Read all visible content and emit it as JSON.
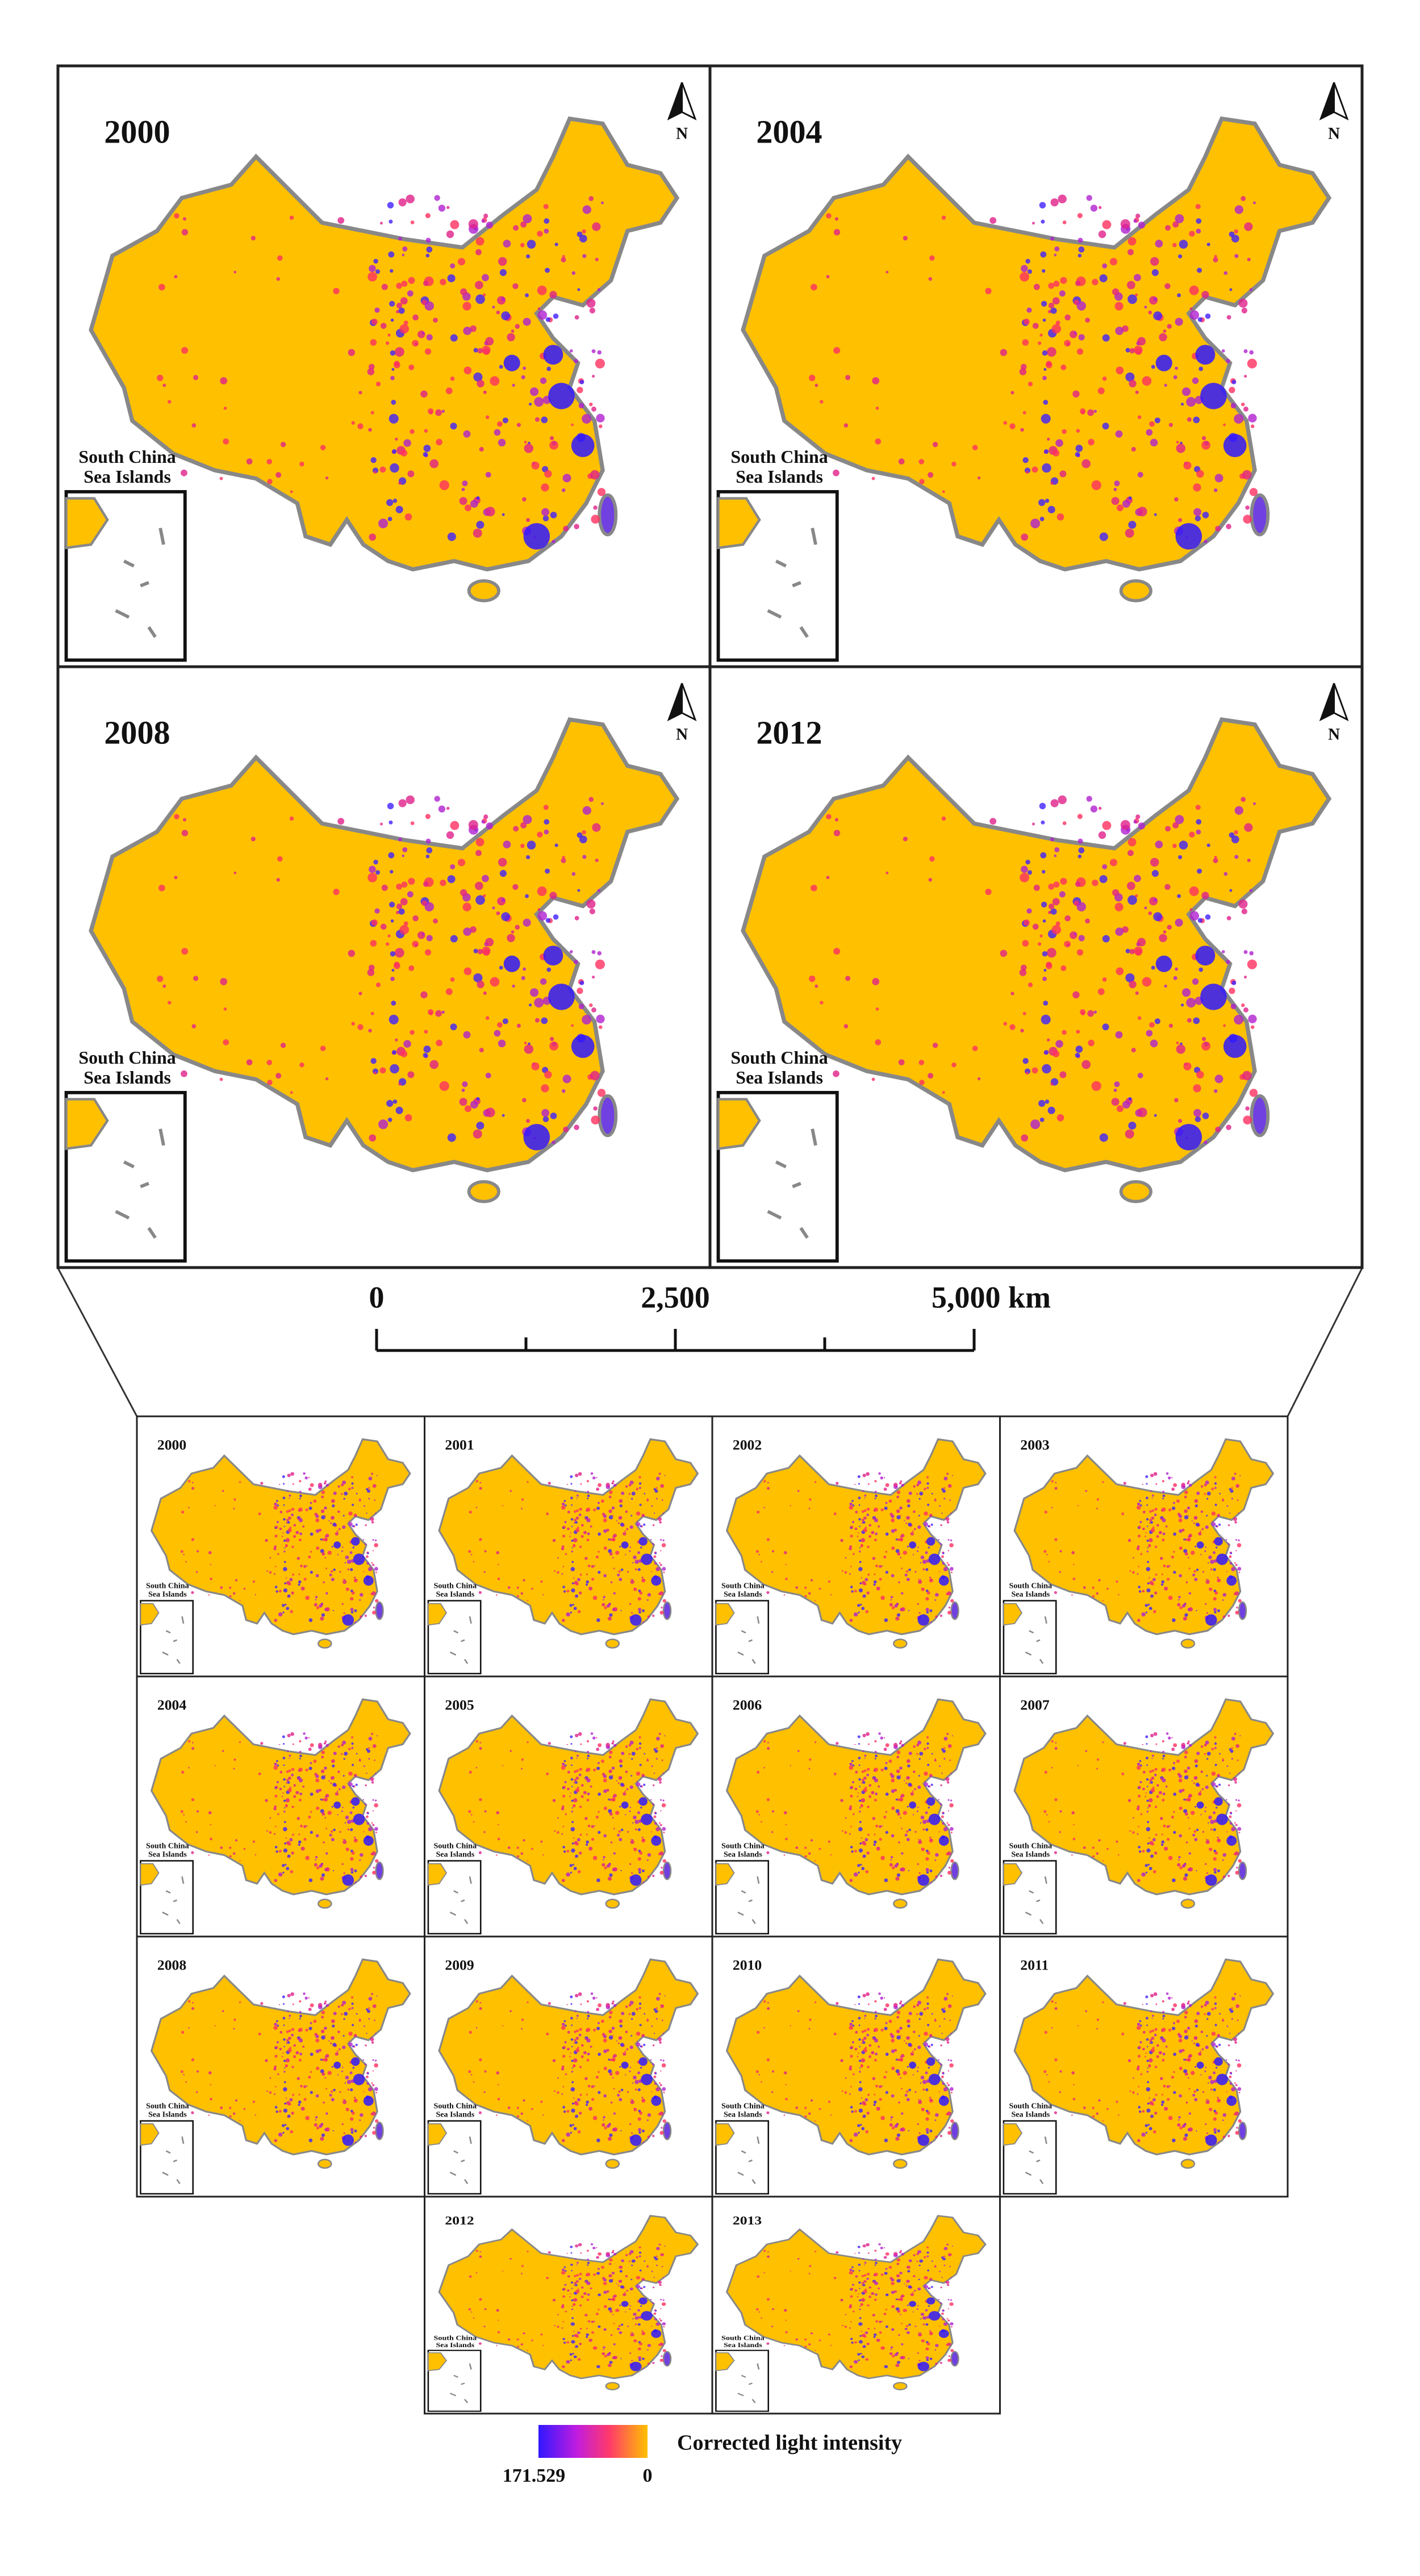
{
  "top_panel": {
    "maps": [
      {
        "year": "2000"
      },
      {
        "year": "2004"
      },
      {
        "year": "2008"
      },
      {
        "year": "2012"
      }
    ],
    "inset_label": [
      "South China",
      "Sea Islands"
    ],
    "north_label": "N"
  },
  "scale_bar": {
    "labels": [
      "0",
      "2,500",
      "5,000 km"
    ]
  },
  "grid": {
    "maps": [
      {
        "year": "2000"
      },
      {
        "year": "2001"
      },
      {
        "year": "2002"
      },
      {
        "year": "2003"
      },
      {
        "year": "2004"
      },
      {
        "year": "2005"
      },
      {
        "year": "2006"
      },
      {
        "year": "2007"
      },
      {
        "year": "2008"
      },
      {
        "year": "2009"
      },
      {
        "year": "2010"
      },
      {
        "year": "2011"
      },
      {
        "year": "2012"
      },
      {
        "year": "2013"
      }
    ]
  },
  "legend": {
    "max_label": "171.529",
    "min_label": "0",
    "title": "Corrected light intensity"
  }
}
